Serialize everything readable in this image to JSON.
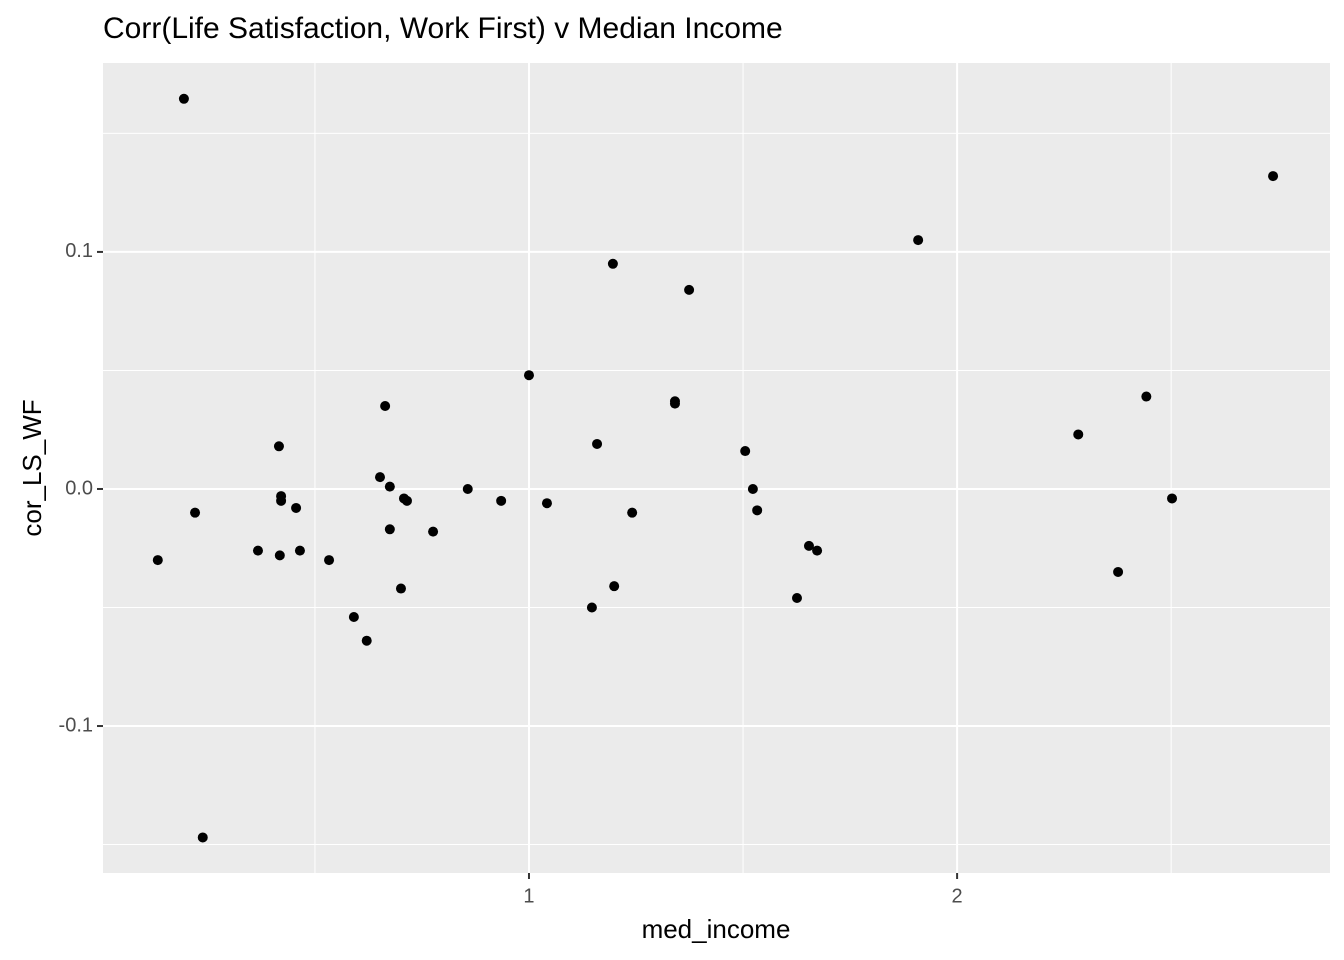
{
  "chart_data": {
    "type": "scatter",
    "title": "Corr(Life Satisfaction, Work First) v Median Income",
    "x_label": "med_income",
    "y_label": "cor_LS_WF",
    "xlim": [
      0.005,
      2.871
    ],
    "ylim": [
      -0.162,
      0.1797
    ],
    "xticks": [
      1,
      2
    ],
    "yticks": [
      -0.1,
      {
        "value": 0,
        "label": "0.0"
      },
      0.1
    ],
    "grid": true,
    "panel_color": "#ebebeb",
    "grid_color": "#ffffff",
    "color": "#000000",
    "x": [
      0.194,
      0.133,
      0.22,
      0.238,
      0.367,
      0.416,
      0.421,
      0.421,
      0.418,
      0.456,
      0.465,
      0.533,
      0.591,
      0.621,
      0.652,
      0.664,
      0.675,
      0.675,
      0.701,
      0.708,
      0.715,
      0.776,
      0.857,
      0.935,
      1.0,
      1.042,
      1.147,
      1.159,
      1.196,
      1.199,
      1.241,
      1.341,
      1.341,
      1.374,
      1.505,
      1.523,
      1.533,
      1.626,
      1.654,
      1.673,
      1.909,
      2.283,
      2.376,
      2.442,
      2.502,
      2.738
    ],
    "values": [
      0.1646,
      -0.03,
      -0.01,
      -0.147,
      -0.026,
      0.018,
      -0.003,
      -0.005,
      -0.028,
      -0.008,
      -0.026,
      -0.03,
      -0.054,
      -0.064,
      0.005,
      0.035,
      0.001,
      -0.017,
      -0.042,
      -0.004,
      -0.005,
      -0.018,
      0.0,
      -0.005,
      0.048,
      -0.006,
      -0.05,
      0.019,
      0.095,
      -0.041,
      -0.01,
      0.036,
      0.037,
      0.084,
      0.016,
      0.0,
      -0.009,
      -0.046,
      -0.024,
      -0.026,
      0.105,
      0.023,
      -0.035,
      0.039,
      -0.004,
      0.132
    ]
  }
}
